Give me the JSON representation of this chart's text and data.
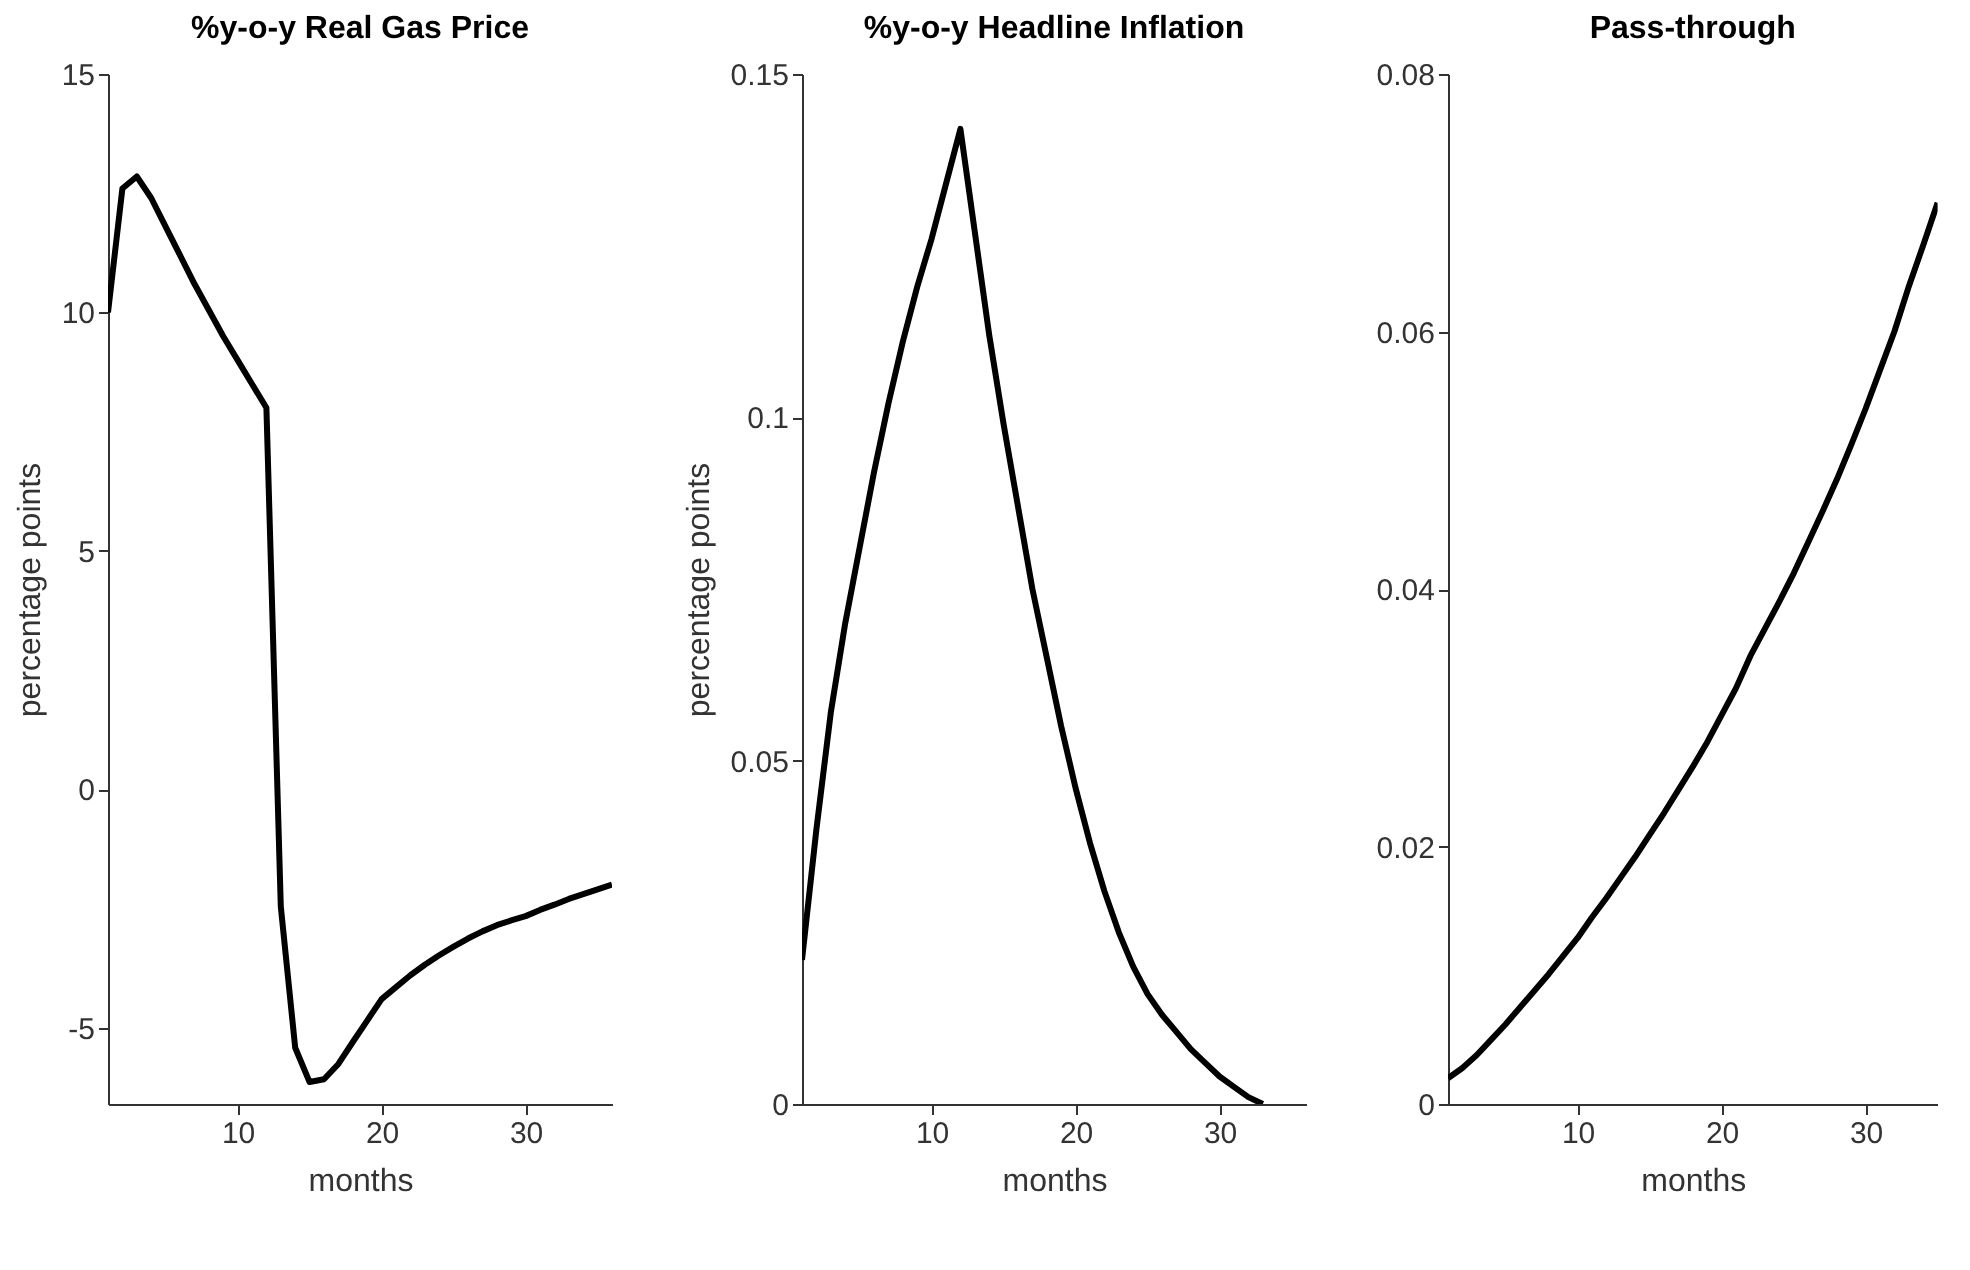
{
  "chart_data": [
    {
      "type": "line",
      "title": "%y-o-y Real Gas Price",
      "xlabel": "months",
      "ylabel": "percentage points",
      "x": [
        1,
        2,
        3,
        4,
        5,
        6,
        7,
        8,
        9,
        10,
        11,
        12,
        13,
        14,
        15,
        16,
        17,
        18,
        19,
        20,
        21,
        22,
        23,
        24,
        25,
        26,
        27,
        28,
        29,
        30,
        31,
        32,
        33,
        34,
        35,
        36
      ],
      "xlim": [
        1,
        36
      ],
      "xticks": [
        10,
        20,
        30
      ],
      "ylim": [
        -6.6,
        15
      ],
      "yticks": [
        -5,
        0,
        5,
        10,
        15
      ],
      "series": [
        {
          "color": "#000000",
          "values": [
            10.0,
            12.6,
            12.85,
            12.4,
            11.8,
            11.2,
            10.6,
            10.05,
            9.5,
            9.0,
            8.5,
            8.0,
            -2.46,
            -5.42,
            -6.14,
            -6.08,
            -5.76,
            -5.3,
            -4.85,
            -4.4,
            -4.15,
            -3.9,
            -3.68,
            -3.48,
            -3.3,
            -3.13,
            -2.98,
            -2.85,
            -2.75,
            -2.66,
            -2.53,
            -2.42,
            -2.3,
            -2.2,
            -2.1,
            -2.0
          ]
        }
      ]
    },
    {
      "type": "line",
      "title": "%y-o-y Headline Inflation",
      "xlabel": "months",
      "ylabel": "percentage points",
      "x": [
        1,
        2,
        3,
        4,
        5,
        6,
        7,
        8,
        9,
        10,
        11,
        12,
        13,
        14,
        15,
        16,
        17,
        18,
        19,
        20,
        21,
        22,
        23,
        24,
        25,
        26,
        27,
        28,
        29,
        30,
        31,
        32,
        33
      ],
      "xlim": [
        1,
        36
      ],
      "xticks": [
        10,
        20,
        30
      ],
      "ylim": [
        0,
        0.15
      ],
      "yticks": [
        0,
        0.05,
        0.1,
        0.15
      ],
      "series": [
        {
          "color": "#000000",
          "values": [
            0.021,
            0.04,
            0.057,
            0.07,
            0.081,
            0.092,
            0.102,
            0.111,
            0.119,
            0.126,
            0.134,
            0.142,
            0.127,
            0.112,
            0.099,
            0.087,
            0.075,
            0.065,
            0.055,
            0.046,
            0.038,
            0.031,
            0.025,
            0.02,
            0.016,
            0.013,
            0.0105,
            0.008,
            0.006,
            0.004,
            0.0025,
            0.001,
            0
          ]
        }
      ]
    },
    {
      "type": "line",
      "title": "Pass-through",
      "xlabel": "months",
      "x": [
        1,
        2,
        3,
        4,
        5,
        6,
        7,
        8,
        9,
        10,
        11,
        12,
        13,
        14,
        15,
        16,
        17,
        18,
        19,
        20,
        21,
        22,
        23,
        24,
        25,
        26,
        27,
        28,
        29,
        30,
        31,
        32,
        33,
        34,
        35
      ],
      "xlim": [
        1,
        35
      ],
      "xticks": [
        10,
        20,
        30
      ],
      "ylim": [
        0,
        0.08
      ],
      "yticks": [
        0,
        0.02,
        0.04,
        0.06,
        0.08
      ],
      "series": [
        {
          "color": "#000000",
          "values": [
            0.002,
            0.0028,
            0.0038,
            0.005,
            0.0062,
            0.0075,
            0.0088,
            0.0101,
            0.0115,
            0.0129,
            0.0145,
            0.016,
            0.0176,
            0.0192,
            0.0209,
            0.0226,
            0.0244,
            0.0262,
            0.0281,
            0.0302,
            0.0323,
            0.0348,
            0.0369,
            0.039,
            0.0412,
            0.0436,
            0.046,
            0.0485,
            0.0512,
            0.054,
            0.057,
            0.06,
            0.0635,
            0.0667,
            0.07
          ]
        }
      ]
    }
  ]
}
